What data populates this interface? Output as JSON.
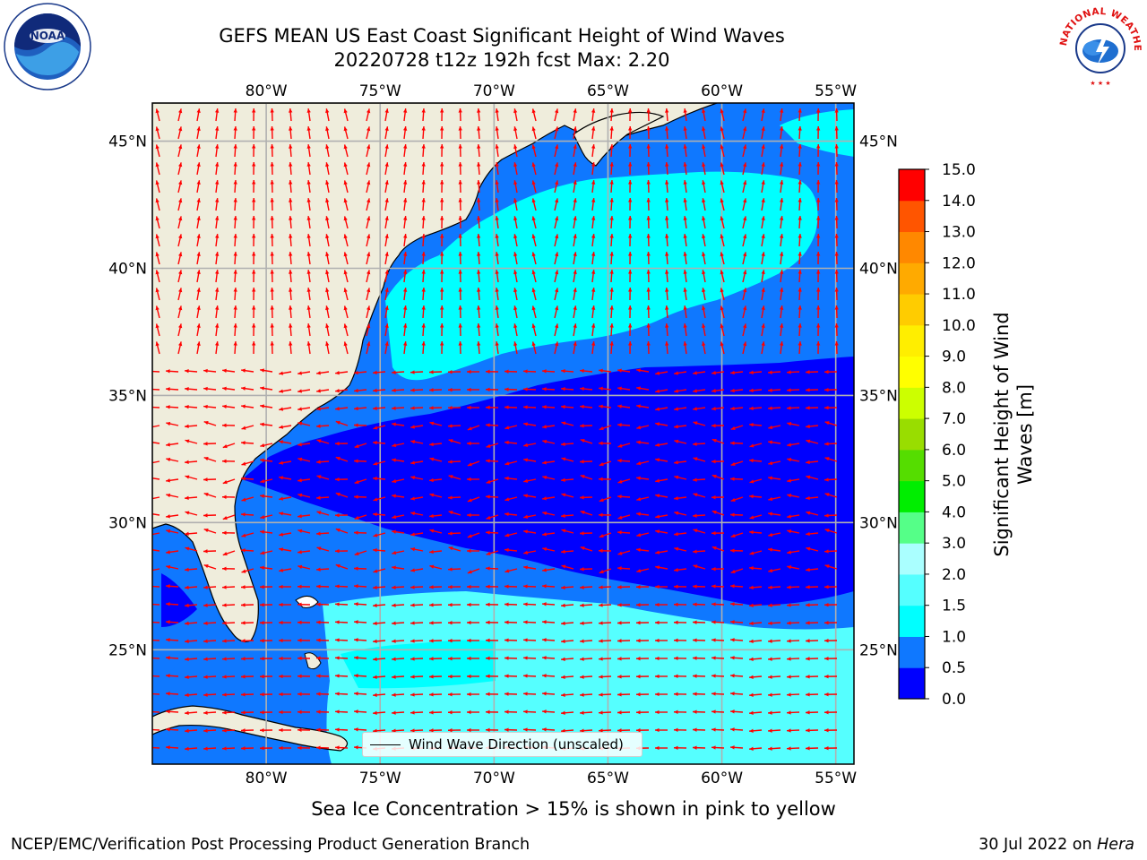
{
  "header": {
    "title": "GEFS MEAN US East Coast Significant Height of Wind Waves",
    "subtitle": "20220728 t12z 192h fcst    Max: 2.20"
  },
  "logos": {
    "left": {
      "name": "noaa-logo",
      "label": "NOAA"
    },
    "right": {
      "name": "nws-logo",
      "label": "NATIONAL WEATHER SERVICE"
    }
  },
  "map": {
    "projection": "plate carree",
    "lon_range": [
      -85,
      -54.2
    ],
    "lat_range": [
      20.5,
      46.5
    ],
    "lon_ticks": [
      {
        "value": -80,
        "label": "80°W"
      },
      {
        "value": -75,
        "label": "75°W"
      },
      {
        "value": -70,
        "label": "70°W"
      },
      {
        "value": -65,
        "label": "65°W"
      },
      {
        "value": -60,
        "label": "60°W"
      },
      {
        "value": -55,
        "label": "55°W"
      }
    ],
    "lat_ticks": [
      {
        "value": 45,
        "label": "45°N"
      },
      {
        "value": 40,
        "label": "40°N"
      },
      {
        "value": 35,
        "label": "35°N"
      },
      {
        "value": 30,
        "label": "30°N"
      },
      {
        "value": 25,
        "label": "25°N"
      }
    ],
    "grid": true,
    "colors": {
      "land": "#efeddc",
      "ocean_0_0.5": "#0000ff",
      "ocean_0.5_1.0": "#0f78ff",
      "ocean_1.0_1.5": "#00ffff",
      "ocean_1.5_2.0": "#55ffff",
      "arrows": "#ff0000",
      "coastline": "#000000",
      "gridline": "#b0b0b0"
    }
  },
  "colorbar": {
    "label": "Significant Height of Wind Waves [m]",
    "label_line1": "Significant Height of Wind",
    "label_line2": "Waves [m]",
    "ticks": [
      "0.0",
      "0.5",
      "1.0",
      "1.5",
      "2.0",
      "3.0",
      "4.0",
      "5.0",
      "6.0",
      "7.0",
      "8.0",
      "9.0",
      "10.0",
      "11.0",
      "12.0",
      "13.0",
      "14.0",
      "15.0"
    ],
    "colors": [
      "#0000ff",
      "#0f78ff",
      "#00ffff",
      "#55ffff",
      "#aaffff",
      "#55ff88",
      "#00ee00",
      "#55dd00",
      "#99dd00",
      "#ccff00",
      "#ffff00",
      "#ffee00",
      "#ffcc00",
      "#ffaa00",
      "#ff8800",
      "#ff5500",
      "#ff0000"
    ]
  },
  "legend": {
    "label": "Wind Wave Direction (unscaled)"
  },
  "note": "Sea Ice Concentration > 15% is shown in pink to yellow",
  "footer": {
    "left": "NCEP/EMC/Verification Post Processing Product Generation Branch",
    "right_date": "30 Jul 2022 on",
    "right_host": "Hera"
  }
}
